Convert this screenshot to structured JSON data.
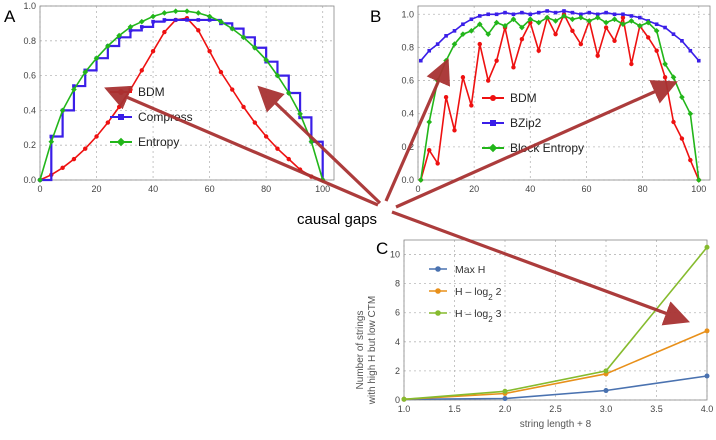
{
  "panel_labels": {
    "a": "A",
    "b": "B",
    "c": "C"
  },
  "callout": {
    "label": "causal gaps",
    "arrow_color": "#a83232"
  },
  "colors": {
    "red": "#ee1111",
    "blue": "#3a1ee8",
    "green": "#22b61a",
    "c_blue": "#4a72b0",
    "c_orange": "#e8901a",
    "c_green": "#86bb2e"
  },
  "chart_data": [
    {
      "id": "A",
      "type": "line",
      "xlim": [
        0,
        104
      ],
      "ylim": [
        0,
        1.0
      ],
      "x_ticks": [
        0,
        20,
        40,
        60,
        80,
        100
      ],
      "y_ticks": [
        0.0,
        0.2,
        0.4,
        0.6,
        0.8,
        1.0
      ],
      "x_tick_labels": [
        "0",
        "20",
        "40",
        "60",
        "80",
        "100"
      ],
      "y_tick_labels": [
        "0.0",
        "0.2",
        "0.4",
        "0.6",
        "0.8",
        "1.0"
      ],
      "legend": [
        "BDM",
        "Compress",
        "Entropy"
      ],
      "series": [
        {
          "name": "BDM",
          "color": "#ee1111",
          "x": [
            0,
            4,
            8,
            12,
            16,
            20,
            24,
            28,
            32,
            36,
            40,
            44,
            48,
            52,
            56,
            60,
            64,
            68,
            72,
            76,
            80,
            84,
            88,
            92,
            96,
            100
          ],
          "y": [
            0.0,
            0.03,
            0.07,
            0.12,
            0.18,
            0.25,
            0.33,
            0.42,
            0.52,
            0.63,
            0.74,
            0.85,
            0.92,
            0.93,
            0.86,
            0.74,
            0.62,
            0.52,
            0.42,
            0.33,
            0.25,
            0.18,
            0.12,
            0.06,
            0.02,
            0.0
          ]
        },
        {
          "name": "Compress",
          "color": "#3a1ee8",
          "x": [
            0,
            4,
            8,
            12,
            16,
            20,
            24,
            28,
            32,
            36,
            40,
            44,
            48,
            52,
            56,
            60,
            64,
            68,
            72,
            76,
            80,
            84,
            88,
            92,
            96,
            100
          ],
          "y": [
            0.0,
            0.25,
            0.4,
            0.54,
            0.63,
            0.7,
            0.77,
            0.82,
            0.86,
            0.88,
            0.91,
            0.92,
            0.92,
            0.92,
            0.92,
            0.92,
            0.9,
            0.87,
            0.82,
            0.76,
            0.68,
            0.6,
            0.5,
            0.36,
            0.22,
            0.0
          ]
        },
        {
          "name": "Entropy",
          "color": "#22b61a",
          "x": [
            0,
            4,
            8,
            12,
            16,
            20,
            24,
            28,
            32,
            36,
            40,
            44,
            48,
            52,
            56,
            60,
            64,
            68,
            72,
            76,
            80,
            84,
            88,
            92,
            96,
            100
          ],
          "y": [
            0.0,
            0.22,
            0.4,
            0.52,
            0.62,
            0.7,
            0.77,
            0.83,
            0.88,
            0.91,
            0.94,
            0.96,
            0.97,
            0.97,
            0.96,
            0.94,
            0.91,
            0.87,
            0.82,
            0.76,
            0.69,
            0.6,
            0.5,
            0.38,
            0.22,
            0.0
          ]
        }
      ]
    },
    {
      "id": "B",
      "type": "line",
      "xlim": [
        0,
        104
      ],
      "ylim": [
        0,
        1.05
      ],
      "x_ticks": [
        0,
        20,
        40,
        60,
        80,
        100
      ],
      "y_ticks": [
        0.0,
        0.2,
        0.4,
        0.6,
        0.8,
        1.0
      ],
      "x_tick_labels": [
        "0",
        "20",
        "40",
        "60",
        "80",
        "100"
      ],
      "y_tick_labels": [
        "0.0",
        "0.2",
        "0.4",
        "0.6",
        "0.8",
        "1.0"
      ],
      "legend": [
        "BDM",
        "BZip2",
        "Block Entropy"
      ],
      "series": [
        {
          "name": "BDM",
          "color": "#ee1111",
          "x": [
            1,
            4,
            7,
            10,
            13,
            16,
            19,
            22,
            25,
            28,
            31,
            34,
            37,
            40,
            43,
            46,
            49,
            52,
            55,
            58,
            61,
            64,
            67,
            70,
            73,
            76,
            79,
            82,
            85,
            88,
            91,
            94,
            97,
            100
          ],
          "y": [
            0.0,
            0.18,
            0.1,
            0.5,
            0.3,
            0.62,
            0.45,
            0.82,
            0.6,
            0.72,
            0.92,
            0.68,
            0.85,
            0.95,
            0.78,
            0.98,
            0.88,
            1.0,
            0.9,
            0.82,
            0.96,
            0.75,
            0.92,
            0.84,
            0.98,
            0.7,
            0.93,
            0.86,
            0.78,
            0.62,
            0.35,
            0.25,
            0.12,
            0.0
          ]
        },
        {
          "name": "BZip2",
          "color": "#3a1ee8",
          "x": [
            1,
            4,
            7,
            10,
            13,
            16,
            19,
            22,
            25,
            28,
            31,
            34,
            37,
            40,
            43,
            46,
            49,
            52,
            55,
            58,
            61,
            64,
            67,
            70,
            73,
            76,
            79,
            82,
            85,
            88,
            91,
            94,
            97,
            100
          ],
          "y": [
            0.72,
            0.78,
            0.82,
            0.87,
            0.9,
            0.94,
            0.97,
            0.99,
            1.0,
            1.0,
            1.01,
            1.0,
            1.01,
            1.0,
            1.01,
            1.02,
            1.01,
            1.02,
            1.01,
            1.0,
            1.01,
            1.0,
            1.01,
            1.0,
            1.0,
            0.99,
            0.98,
            0.96,
            0.94,
            0.92,
            0.88,
            0.84,
            0.78,
            0.72
          ]
        },
        {
          "name": "Block Entropy",
          "color": "#22b61a",
          "x": [
            1,
            4,
            7,
            10,
            13,
            16,
            19,
            22,
            25,
            28,
            31,
            34,
            37,
            40,
            43,
            46,
            49,
            52,
            55,
            58,
            61,
            64,
            67,
            70,
            73,
            76,
            79,
            82,
            85,
            88,
            91,
            94,
            97,
            100
          ],
          "y": [
            0.0,
            0.35,
            0.6,
            0.72,
            0.82,
            0.88,
            0.9,
            0.94,
            0.88,
            0.95,
            0.93,
            0.97,
            0.92,
            0.97,
            0.95,
            0.98,
            0.96,
            0.99,
            0.97,
            0.98,
            0.96,
            0.98,
            0.95,
            0.97,
            0.94,
            0.96,
            0.93,
            0.95,
            0.9,
            0.7,
            0.62,
            0.5,
            0.4,
            0.0
          ]
        }
      ]
    },
    {
      "id": "C",
      "type": "line",
      "xlim": [
        1.0,
        4.0
      ],
      "ylim": [
        0,
        11
      ],
      "x_ticks": [
        1.0,
        1.5,
        2.0,
        2.5,
        3.0,
        3.5,
        4.0
      ],
      "y_ticks": [
        0,
        2,
        4,
        6,
        8,
        10
      ],
      "x_tick_labels": [
        "1.0",
        "1.5",
        "2.0",
        "2.5",
        "3.0",
        "3.5",
        "4.0"
      ],
      "y_tick_labels": [
        "0",
        "2",
        "4",
        "6",
        "8",
        "10"
      ],
      "xlabel": "string length + 8",
      "ylabel_line1": "Number of strings",
      "ylabel_line2": "with high H but low CTM",
      "legend": [
        {
          "base": "Max H",
          "sub": ""
        },
        {
          "base": "H – log",
          "sub": "2",
          "tail": " 2"
        },
        {
          "base": "H – log",
          "sub": "2",
          "tail": " 3"
        }
      ],
      "series": [
        {
          "name": "Max H",
          "color": "#4a72b0",
          "x": [
            1,
            2,
            3,
            4
          ],
          "y": [
            0.05,
            0.1,
            0.65,
            1.65
          ]
        },
        {
          "name": "H - log2 2",
          "color": "#e8901a",
          "x": [
            1,
            2,
            3,
            4
          ],
          "y": [
            0.05,
            0.45,
            1.8,
            4.75
          ]
        },
        {
          "name": "H - log2 3",
          "color": "#86bb2e",
          "x": [
            1,
            2,
            3,
            4
          ],
          "y": [
            0.05,
            0.6,
            2.0,
            10.5
          ]
        }
      ]
    }
  ]
}
